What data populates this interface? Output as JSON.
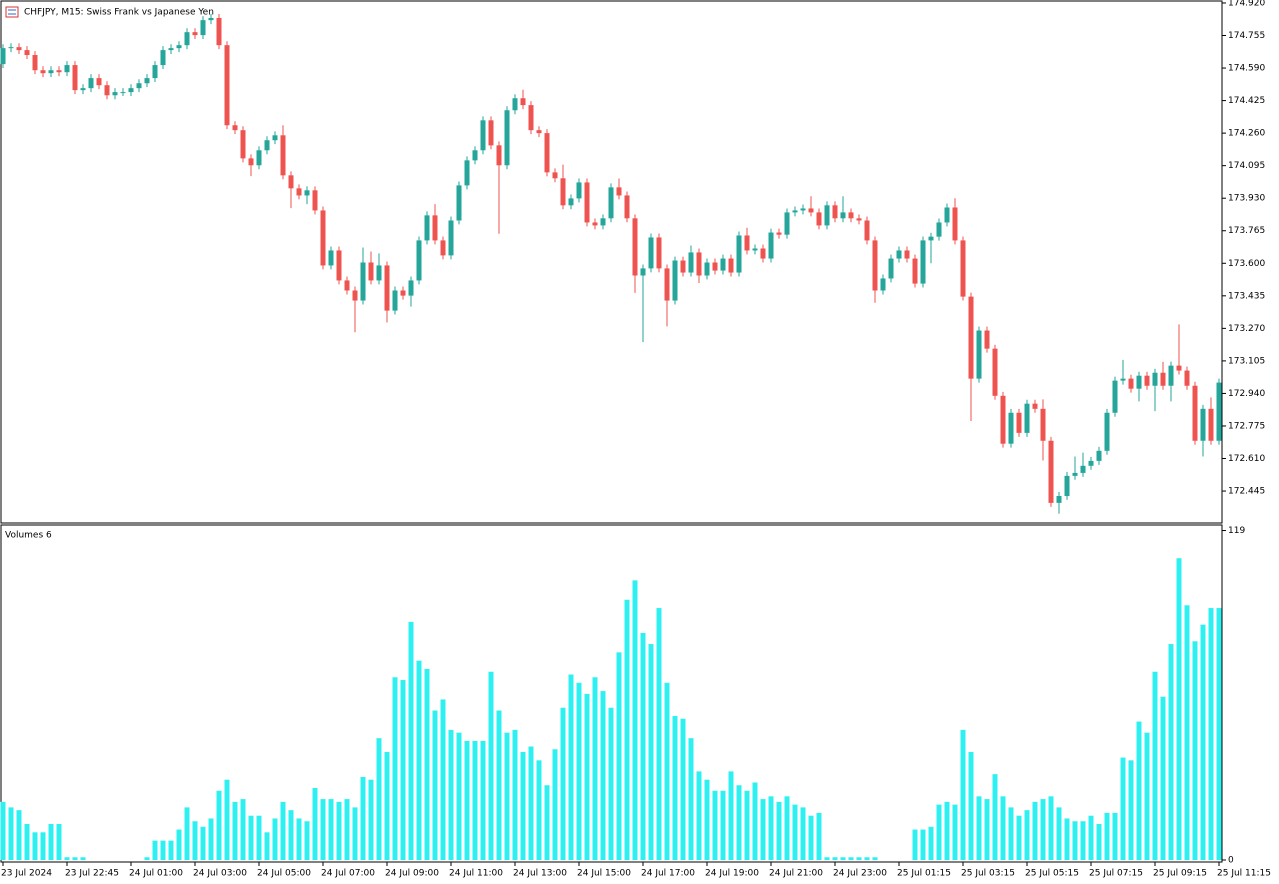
{
  "chart_data": [
    {
      "type": "candlestick",
      "title": "CHFJPY, M15:  Swiss Frank vs Japanese Yen",
      "up_color": "#26a69a",
      "down_color": "#ef5350",
      "ylim": [
        172.283,
        174.93
      ],
      "yticks": [
        {
          "value": 174.92,
          "label": "174.920"
        },
        174.755,
        {
          "value": 174.59,
          "label": "174.590"
        },
        174.425,
        {
          "value": 174.26,
          "label": "174.260"
        },
        174.095,
        {
          "value": 173.93,
          "label": "173.930"
        },
        173.765,
        {
          "value": 173.6,
          "label": "173.600"
        },
        173.435,
        {
          "value": 173.27,
          "label": "173.270"
        },
        173.105,
        {
          "value": 172.94,
          "label": "172.940"
        },
        172.775,
        {
          "value": 172.61,
          "label": "172.610"
        },
        172.445
      ],
      "open": [
        174.61,
        174.691,
        174.696,
        174.681,
        174.656,
        174.579,
        174.564,
        174.579,
        174.569,
        174.605,
        174.478,
        174.488,
        174.539,
        174.503,
        174.452,
        174.468,
        174.468,
        174.488,
        174.513,
        174.539,
        174.605,
        174.681,
        174.691,
        174.706,
        174.772,
        174.757,
        174.833,
        174.844,
        174.706,
        174.3,
        174.275,
        174.132,
        174.097,
        174.173,
        174.224,
        174.249,
        174.046,
        173.98,
        173.944,
        173.97,
        173.868,
        173.589,
        173.665,
        173.513,
        173.462,
        173.411,
        173.604,
        173.513,
        173.589,
        173.36,
        173.462,
        173.436,
        173.513,
        173.716,
        173.843,
        173.716,
        173.64,
        173.817,
        173.995,
        174.122,
        174.173,
        174.325,
        174.198,
        174.097,
        174.376,
        174.437,
        174.402,
        174.275,
        174.26,
        174.061,
        174.031,
        173.894,
        173.929,
        174.01,
        173.807,
        173.792,
        173.828,
        173.985,
        173.944,
        173.828,
        173.538,
        173.574,
        173.731,
        173.574,
        173.411,
        173.614,
        173.553,
        173.655,
        173.538,
        173.604,
        173.563,
        173.624,
        173.553,
        173.741,
        173.665,
        173.675,
        173.624,
        173.756,
        173.745,
        173.858,
        173.868,
        173.878,
        173.858,
        173.792,
        173.894,
        173.828,
        173.858,
        173.828,
        173.817,
        173.716,
        173.462,
        173.523,
        173.624,
        173.665,
        173.624,
        173.497,
        173.716,
        173.735,
        173.807,
        173.883,
        173.716,
        173.431,
        173.015,
        173.259,
        173.167,
        172.928,
        172.685,
        172.842,
        172.74,
        172.888,
        172.862,
        172.7,
        172.385,
        172.42,
        172.522,
        172.537,
        172.573,
        172.598,
        172.649,
        172.842,
        173.005,
        173.015,
        172.964,
        173.03,
        172.979,
        173.045,
        172.979,
        173.081,
        173.056,
        172.979,
        172.7,
        172.862,
        172.7
      ],
      "high": [
        174.711,
        174.716,
        174.716,
        174.701,
        174.676,
        174.599,
        174.599,
        174.599,
        174.625,
        174.625,
        174.508,
        174.559,
        174.559,
        174.523,
        174.488,
        174.488,
        174.508,
        174.533,
        174.559,
        174.625,
        174.701,
        174.711,
        174.726,
        174.792,
        174.792,
        174.853,
        174.864,
        174.864,
        174.726,
        174.32,
        174.295,
        174.152,
        174.193,
        174.244,
        174.269,
        174.3,
        174.066,
        174.0,
        173.99,
        173.99,
        173.888,
        173.685,
        173.685,
        173.533,
        173.482,
        173.68,
        173.66,
        173.65,
        173.609,
        173.482,
        173.482,
        173.533,
        173.736,
        173.863,
        173.9,
        173.736,
        173.837,
        174.015,
        174.142,
        174.193,
        174.345,
        174.345,
        174.218,
        174.396,
        174.457,
        174.48,
        174.422,
        174.295,
        174.28,
        174.081,
        174.1,
        173.949,
        174.03,
        174.03,
        173.827,
        173.848,
        174.005,
        174.03,
        173.964,
        173.848,
        173.594,
        173.751,
        173.751,
        173.594,
        173.634,
        173.634,
        173.69,
        173.675,
        173.624,
        173.624,
        173.644,
        173.644,
        173.761,
        173.78,
        173.695,
        173.695,
        173.776,
        173.776,
        173.878,
        173.888,
        173.898,
        173.94,
        173.878,
        173.914,
        173.914,
        173.94,
        173.878,
        173.848,
        173.837,
        173.736,
        173.543,
        173.644,
        173.685,
        173.685,
        173.644,
        173.736,
        173.755,
        173.827,
        173.903,
        173.93,
        173.736,
        173.451,
        173.279,
        173.279,
        173.187,
        172.948,
        172.862,
        172.862,
        172.908,
        172.908,
        172.91,
        172.72,
        172.44,
        172.542,
        172.62,
        172.64,
        172.618,
        172.669,
        172.862,
        173.025,
        173.11,
        173.035,
        173.05,
        173.05,
        173.065,
        173.1,
        173.101,
        173.29,
        173.076,
        172.999,
        172.882,
        172.92,
        173.015
      ],
      "low": [
        174.59,
        174.671,
        174.661,
        174.636,
        174.559,
        174.544,
        174.544,
        174.549,
        174.549,
        174.458,
        174.458,
        174.468,
        174.483,
        174.432,
        174.432,
        174.448,
        174.448,
        174.468,
        174.493,
        174.519,
        174.585,
        174.661,
        174.671,
        174.686,
        174.737,
        174.737,
        174.813,
        174.686,
        174.28,
        174.255,
        174.112,
        174.042,
        174.077,
        174.153,
        174.204,
        174.026,
        173.88,
        173.924,
        173.9,
        173.848,
        173.569,
        173.569,
        173.493,
        173.442,
        173.25,
        173.391,
        173.493,
        173.493,
        173.3,
        173.34,
        173.416,
        173.38,
        173.493,
        173.696,
        173.696,
        173.62,
        173.62,
        173.797,
        173.975,
        174.102,
        174.153,
        174.178,
        173.75,
        174.077,
        174.356,
        174.382,
        174.255,
        174.24,
        174.041,
        174.011,
        173.874,
        173.874,
        173.909,
        173.787,
        173.772,
        173.772,
        173.808,
        173.924,
        173.808,
        173.45,
        173.2,
        173.554,
        173.554,
        173.28,
        173.391,
        173.533,
        173.533,
        173.5,
        173.518,
        173.543,
        173.543,
        173.533,
        173.533,
        173.645,
        173.645,
        173.604,
        173.604,
        173.725,
        173.725,
        173.838,
        173.848,
        173.838,
        173.772,
        173.772,
        173.808,
        173.808,
        173.808,
        173.797,
        173.696,
        173.4,
        173.442,
        173.503,
        173.604,
        173.604,
        173.477,
        173.477,
        173.6,
        173.715,
        173.787,
        173.696,
        173.411,
        172.8,
        172.995,
        173.147,
        172.908,
        172.665,
        172.665,
        172.72,
        172.72,
        172.842,
        172.6,
        172.365,
        172.33,
        172.4,
        172.502,
        172.517,
        172.553,
        172.578,
        172.629,
        172.822,
        172.985,
        172.944,
        172.9,
        172.959,
        172.85,
        172.959,
        172.9,
        173.036,
        172.959,
        172.68,
        172.62,
        172.68,
        172.68
      ],
      "close": [
        174.691,
        174.696,
        174.681,
        174.656,
        174.579,
        174.564,
        174.579,
        174.569,
        174.605,
        174.478,
        174.488,
        174.539,
        174.503,
        174.452,
        174.468,
        174.468,
        174.488,
        174.513,
        174.539,
        174.605,
        174.681,
        174.691,
        174.706,
        174.772,
        174.757,
        174.833,
        174.844,
        174.706,
        174.3,
        174.275,
        174.132,
        174.097,
        174.173,
        174.224,
        174.249,
        174.046,
        173.98,
        173.944,
        173.97,
        173.868,
        173.589,
        173.665,
        173.513,
        173.462,
        173.411,
        173.604,
        173.513,
        173.589,
        173.36,
        173.462,
        173.436,
        173.513,
        173.716,
        173.843,
        173.716,
        173.64,
        173.817,
        173.995,
        174.122,
        174.173,
        174.325,
        174.198,
        174.097,
        174.376,
        174.437,
        174.402,
        174.275,
        174.26,
        174.061,
        174.031,
        173.894,
        173.929,
        174.01,
        173.807,
        173.792,
        173.828,
        173.985,
        173.944,
        173.828,
        173.538,
        173.574,
        173.731,
        173.574,
        173.411,
        173.614,
        173.553,
        173.655,
        173.538,
        173.604,
        173.563,
        173.624,
        173.553,
        173.741,
        173.665,
        173.675,
        173.624,
        173.756,
        173.745,
        173.858,
        173.868,
        173.878,
        173.858,
        173.792,
        173.894,
        173.828,
        173.858,
        173.828,
        173.817,
        173.716,
        173.462,
        173.523,
        173.624,
        173.665,
        173.624,
        173.497,
        173.716,
        173.735,
        173.807,
        173.883,
        173.716,
        173.431,
        173.015,
        173.259,
        173.167,
        172.928,
        172.685,
        172.842,
        172.74,
        172.888,
        172.862,
        172.7,
        172.385,
        172.42,
        172.522,
        172.537,
        172.573,
        172.598,
        172.649,
        172.842,
        173.005,
        173.015,
        172.964,
        173.03,
        172.979,
        173.045,
        172.979,
        173.081,
        173.056,
        172.979,
        172.7,
        172.862,
        172.7,
        172.995
      ]
    },
    {
      "type": "bar",
      "title": "Volumes 6",
      "color": "#2ef0f0",
      "ylim": [
        0,
        121
      ],
      "yticks": [
        119,
        0
      ],
      "categories": [
        "23 Jul 2024",
        null,
        null,
        null,
        null,
        null,
        null,
        null,
        "23 Jul 22:45",
        null,
        null,
        null,
        null,
        null,
        null,
        null,
        "24 Jul 01:00",
        null,
        null,
        null,
        null,
        null,
        null,
        null,
        "24 Jul 03:00",
        null,
        null,
        null,
        null,
        null,
        null,
        null,
        "24 Jul 05:00",
        null,
        null,
        null,
        null,
        null,
        null,
        null,
        "24 Jul 07:00",
        null,
        null,
        null,
        null,
        null,
        null,
        null,
        "24 Jul 09:00",
        null,
        null,
        null,
        null,
        null,
        null,
        null,
        "24 Jul 11:00",
        null,
        null,
        null,
        null,
        null,
        null,
        null,
        "24 Jul 13:00",
        null,
        null,
        null,
        null,
        null,
        null,
        null,
        "24 Jul 15:00",
        null,
        null,
        null,
        null,
        null,
        null,
        null,
        "24 Jul 17:00",
        null,
        null,
        null,
        null,
        null,
        null,
        null,
        "24 Jul 19:00",
        null,
        null,
        null,
        null,
        null,
        null,
        null,
        "24 Jul 21:00",
        null,
        null,
        null,
        null,
        null,
        null,
        null,
        "24 Jul 23:00",
        null,
        null,
        null,
        null,
        null,
        null,
        null,
        "25 Jul 01:15",
        null,
        null,
        null,
        null,
        null,
        null,
        null,
        "25 Jul 03:15",
        null,
        null,
        null,
        null,
        null,
        null,
        null,
        "25 Jul 05:15",
        null,
        null,
        null,
        null,
        null,
        null,
        null,
        "25 Jul 07:15",
        null,
        null,
        null,
        null,
        null,
        null,
        null,
        "25 Jul 09:15",
        null,
        null,
        null,
        null,
        null,
        null,
        null,
        "25 Jul 11:15"
      ],
      "values": [
        21,
        19,
        18,
        13,
        10,
        10,
        13,
        13,
        1,
        1,
        1,
        0,
        0,
        0,
        0,
        0,
        0,
        0,
        1,
        7,
        7,
        7,
        11,
        19,
        14,
        12,
        15,
        25,
        29,
        21,
        22,
        16,
        16,
        10,
        15,
        21,
        18,
        15,
        14,
        26,
        22,
        22,
        21,
        22,
        19,
        30,
        29,
        44,
        39,
        66,
        65,
        86,
        72,
        69,
        54,
        58,
        47,
        46,
        43,
        43,
        43,
        68,
        54,
        46,
        47,
        39,
        41,
        36,
        27,
        40,
        55,
        67,
        64,
        60,
        66,
        61,
        55,
        75,
        94,
        101,
        82,
        78,
        91,
        64,
        52,
        51,
        44,
        32,
        29,
        25,
        25,
        32,
        27,
        25,
        28,
        22,
        23,
        21,
        23,
        20,
        19,
        16,
        17,
        1,
        1,
        1,
        1,
        1,
        1,
        1,
        0,
        0,
        0,
        0,
        11,
        11,
        12,
        20,
        21,
        20,
        47,
        39,
        23,
        22,
        31,
        23,
        19,
        16,
        18,
        21,
        22,
        23,
        19,
        15,
        14,
        14,
        16,
        13,
        17,
        17,
        37,
        36,
        50,
        46,
        68,
        59,
        78,
        109,
        92,
        79,
        85,
        91,
        91
      ]
    }
  ]
}
